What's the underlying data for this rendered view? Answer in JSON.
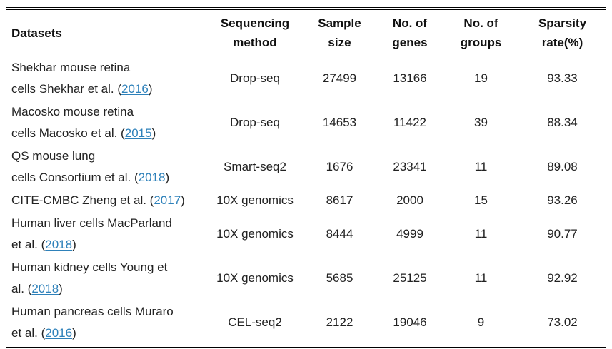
{
  "colors": {
    "background": "#ffffff",
    "heading_text": "#111111",
    "body_text": "#222222",
    "citation_link": "#2e81ba",
    "table_rule": "#000000"
  },
  "table": {
    "columns": [
      {
        "key": "datasets",
        "label": "Datasets",
        "lines": [
          "Datasets"
        ]
      },
      {
        "key": "sequencing-method",
        "label": "Sequencing method",
        "lines": [
          "Sequencing",
          "method"
        ]
      },
      {
        "key": "sample-size",
        "label": "Sample size",
        "lines": [
          "Sample",
          "size"
        ]
      },
      {
        "key": "no-of-genes",
        "label": "No. of genes",
        "lines": [
          "No. of",
          "genes"
        ]
      },
      {
        "key": "no-of-groups",
        "label": "No. of groups",
        "lines": [
          "No. of",
          "groups"
        ]
      },
      {
        "key": "sparsity-rate",
        "label": "Sparsity rate(%)",
        "lines": [
          "Sparsity",
          "rate(%)"
        ]
      }
    ],
    "rows": [
      {
        "dataset_lines": [
          "Shekhar mouse retina",
          "cells Shekhar et al. ("
        ],
        "citation_year": "2016",
        "dataset_suffix": ")",
        "sequencing_method": "Drop-seq",
        "sample_size": "27499",
        "no_of_genes": "13166",
        "no_of_groups": "19",
        "sparsity_rate": "93.33"
      },
      {
        "dataset_lines": [
          "Macosko mouse retina",
          "cells Macosko et al. ("
        ],
        "citation_year": "2015",
        "dataset_suffix": ")",
        "sequencing_method": "Drop-seq",
        "sample_size": "14653",
        "no_of_genes": "11422",
        "no_of_groups": "39",
        "sparsity_rate": "88.34"
      },
      {
        "dataset_lines": [
          "QS mouse lung",
          "cells Consortium et al. ("
        ],
        "citation_year": "2018",
        "dataset_suffix": ")",
        "sequencing_method": "Smart-seq2",
        "sample_size": "1676",
        "no_of_genes": "23341",
        "no_of_groups": "11",
        "sparsity_rate": "89.08"
      },
      {
        "dataset_lines": [
          "CITE-CMBC Zheng et al. ("
        ],
        "citation_year": "2017",
        "dataset_suffix": ")",
        "sequencing_method": "10X genomics",
        "sample_size": "8617",
        "no_of_genes": "2000",
        "no_of_groups": "15",
        "sparsity_rate": "93.26"
      },
      {
        "dataset_lines": [
          "Human liver cells MacParland",
          "et al. ("
        ],
        "citation_year": "2018",
        "dataset_suffix": ")",
        "sequencing_method": "10X genomics",
        "sample_size": "8444",
        "no_of_genes": "4999",
        "no_of_groups": "11",
        "sparsity_rate": "90.77"
      },
      {
        "dataset_lines": [
          "Human kidney cells Young et",
          "al. ("
        ],
        "citation_year": "2018",
        "dataset_suffix": ")",
        "sequencing_method": "10X genomics",
        "sample_size": "5685",
        "no_of_genes": "25125",
        "no_of_groups": "11",
        "sparsity_rate": "92.92"
      },
      {
        "dataset_lines": [
          "Human pancreas cells Muraro",
          "et al. ("
        ],
        "citation_year": "2016",
        "dataset_suffix": ")",
        "sequencing_method": "CEL-seq2",
        "sample_size": "2122",
        "no_of_genes": "19046",
        "no_of_groups": "9",
        "sparsity_rate": "73.02"
      }
    ]
  }
}
